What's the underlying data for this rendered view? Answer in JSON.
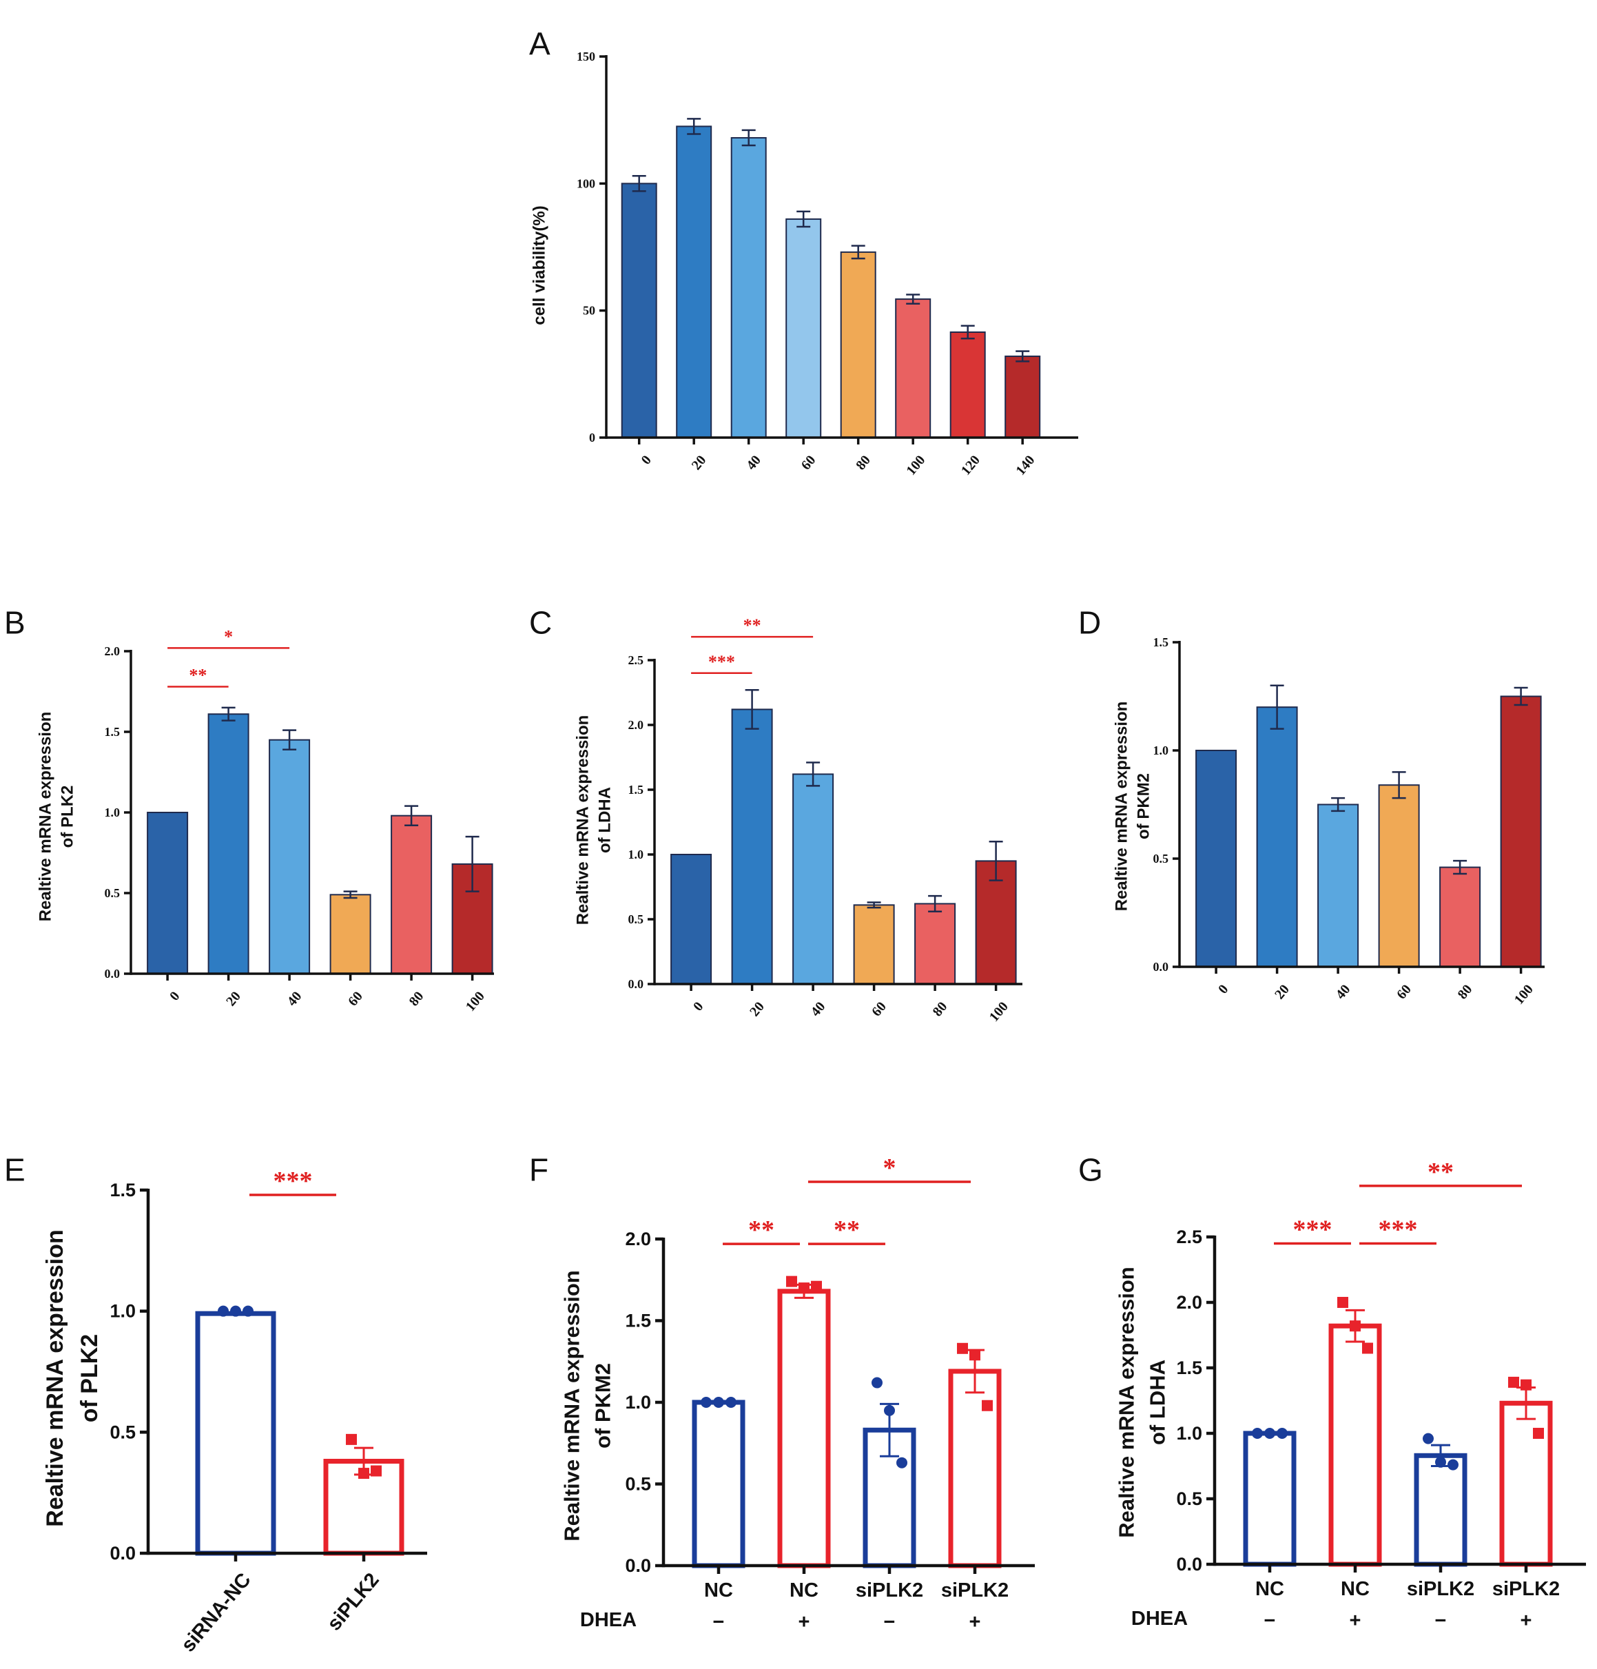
{
  "chart_data": [
    {
      "id": "A",
      "label": "A",
      "type": "bar",
      "ylabel": "cell viability(%)",
      "xlabel": "",
      "ylim": [
        0,
        150
      ],
      "yticks": [
        0,
        50,
        100,
        150
      ],
      "ytick_labels": [
        "0",
        "50",
        "100",
        "150"
      ],
      "categories": [
        "0",
        "20",
        "40",
        "60",
        "80",
        "100",
        "120",
        "140"
      ],
      "values": [
        100,
        122.5,
        118,
        86,
        73,
        54.5,
        41.5,
        32
      ],
      "errors": [
        3,
        3,
        3,
        3,
        2.5,
        1.8,
        2.5,
        2
      ],
      "colors": [
        "#2a63a8",
        "#2e7cc3",
        "#5aa7df",
        "#93c6ec",
        "#f0a955",
        "#e96161",
        "#d93535",
        "#b52a2a"
      ],
      "significance": []
    },
    {
      "id": "B",
      "label": "B",
      "type": "bar",
      "ylabel": [
        "Realtive mRNA expression",
        "of PLK2"
      ],
      "xlabel": "",
      "ylim": [
        0,
        2.0
      ],
      "yticks": [
        0,
        0.5,
        1.0,
        1.5,
        2.0
      ],
      "ytick_labels": [
        "0.0",
        "0.5",
        "1.0",
        "1.5",
        "2.0"
      ],
      "categories": [
        "0",
        "20",
        "40",
        "60",
        "80",
        "100"
      ],
      "values": [
        1.0,
        1.61,
        1.45,
        0.49,
        0.98,
        0.68
      ],
      "errors": [
        0,
        0.04,
        0.06,
        0.02,
        0.06,
        0.17
      ],
      "colors": [
        "#2a63a8",
        "#2e7cc3",
        "#5aa7df",
        "#f0a955",
        "#e96161",
        "#b52a2a"
      ],
      "significance": [
        {
          "from": 0,
          "to": 1,
          "level": 1.78,
          "label": "**"
        },
        {
          "from": 0,
          "to": 2,
          "level": 2.02,
          "label": "*"
        }
      ]
    },
    {
      "id": "C",
      "label": "C",
      "type": "bar",
      "ylabel": [
        "Realtive mRNA expression",
        "of LDHA"
      ],
      "xlabel": "",
      "ylim": [
        0,
        2.5
      ],
      "yticks": [
        0,
        0.5,
        1.0,
        1.5,
        2.0,
        2.5
      ],
      "ytick_labels": [
        "0.0",
        "0.5",
        "1.0",
        "1.5",
        "2.0",
        "2.5"
      ],
      "categories": [
        "0",
        "20",
        "40",
        "60",
        "80",
        "100"
      ],
      "values": [
        1.0,
        2.12,
        1.62,
        0.61,
        0.62,
        0.95
      ],
      "errors": [
        0,
        0.15,
        0.09,
        0.02,
        0.06,
        0.15
      ],
      "colors": [
        "#2a63a8",
        "#2e7cc3",
        "#5aa7df",
        "#f0a955",
        "#e96161",
        "#b52a2a"
      ],
      "significance": [
        {
          "from": 0,
          "to": 1,
          "level": 2.4,
          "label": "***"
        },
        {
          "from": 0,
          "to": 2,
          "level": 2.68,
          "label": "**"
        }
      ]
    },
    {
      "id": "D",
      "label": "D",
      "type": "bar",
      "ylabel": [
        "Realtive mRNA expression",
        "of PKM2"
      ],
      "xlabel": "",
      "ylim": [
        0,
        1.5
      ],
      "yticks": [
        0,
        0.5,
        1.0,
        1.5
      ],
      "ytick_labels": [
        "0.0",
        "0.5",
        "1.0",
        "1.5"
      ],
      "categories": [
        "0",
        "20",
        "40",
        "60",
        "80",
        "100"
      ],
      "values": [
        1.0,
        1.2,
        0.75,
        0.84,
        0.46,
        1.25
      ],
      "errors": [
        0,
        0.1,
        0.03,
        0.06,
        0.03,
        0.04
      ],
      "colors": [
        "#2a63a8",
        "#2e7cc3",
        "#5aa7df",
        "#f0a955",
        "#e96161",
        "#b52a2a"
      ],
      "significance": []
    },
    {
      "id": "E",
      "label": "E",
      "type": "bar",
      "ylabel": [
        "Realtive mRNA expression",
        "of PLK2"
      ],
      "xlabel": "",
      "ylim": [
        0,
        1.5
      ],
      "yticks": [
        0,
        0.5,
        1.0,
        1.5
      ],
      "ytick_labels": [
        "0.0",
        "0.5",
        "1.0",
        "1.5"
      ],
      "categories": [
        "siRNA-NC",
        "siPLK2"
      ],
      "values": [
        0.99,
        0.38
      ],
      "errors": [
        0,
        0.055
      ],
      "colors": [
        "#1a3d9a",
        "#e8232b"
      ],
      "points": [
        [
          1.0,
          1.0,
          1.0
        ],
        [
          0.47,
          0.33,
          0.34
        ]
      ],
      "markers": [
        "circle",
        "square"
      ],
      "significance": [
        {
          "from": 0,
          "to": 1,
          "level": 1.48,
          "label": "***"
        }
      ]
    },
    {
      "id": "F",
      "label": "F",
      "type": "bar",
      "ylabel": [
        "Realtive mRNA expression",
        "of PKM2"
      ],
      "xlabel": "",
      "ylim": [
        0,
        2.0
      ],
      "yticks": [
        0,
        0.5,
        1.0,
        1.5,
        2.0
      ],
      "ytick_labels": [
        "0.0",
        "0.5",
        "1.0",
        "1.5",
        "2.0"
      ],
      "categories": [
        "NC",
        "NC",
        "siPLK2",
        "siPLK2"
      ],
      "dhea_label": "DHEA",
      "dhea": [
        "−",
        "+",
        "−",
        "+"
      ],
      "values": [
        1.0,
        1.68,
        0.83,
        1.19
      ],
      "errors": [
        0,
        0.04,
        0.16,
        0.13
      ],
      "colors": [
        "#1a3d9a",
        "#e8232b",
        "#1a3d9a",
        "#e8232b"
      ],
      "points": [
        [
          1.0,
          1.0,
          1.0
        ],
        [
          1.74,
          1.7,
          1.71
        ],
        [
          1.12,
          0.95,
          0.63
        ],
        [
          1.33,
          1.29,
          0.98
        ]
      ],
      "markers": [
        "circle",
        "square",
        "circle",
        "square"
      ],
      "significance": [
        {
          "from": 0,
          "to": 1,
          "level": 1.97,
          "label": "**"
        },
        {
          "from": 1,
          "to": 2,
          "level": 1.97,
          "label": "**"
        },
        {
          "from": 1,
          "to": 3,
          "level": 2.35,
          "label": "*"
        }
      ]
    },
    {
      "id": "G",
      "label": "G",
      "type": "bar",
      "ylabel": [
        "Realtive mRNA expression",
        "of LDHA"
      ],
      "xlabel": "",
      "ylim": [
        0,
        2.5
      ],
      "yticks": [
        0,
        0.5,
        1.0,
        1.5,
        2.0,
        2.5
      ],
      "ytick_labels": [
        "0.0",
        "0.5",
        "1.0",
        "1.5",
        "2.0",
        "2.5"
      ],
      "categories": [
        "NC",
        "NC",
        "siPLK2",
        "siPLK2"
      ],
      "dhea_label": "DHEA",
      "dhea": [
        "−",
        "+",
        "−",
        "+"
      ],
      "values": [
        1.0,
        1.82,
        0.83,
        1.23
      ],
      "errors": [
        0,
        0.12,
        0.08,
        0.12
      ],
      "colors": [
        "#1a3d9a",
        "#e8232b",
        "#1a3d9a",
        "#e8232b"
      ],
      "points": [
        [
          1.0,
          1.0,
          1.0
        ],
        [
          2.0,
          1.82,
          1.65
        ],
        [
          0.96,
          0.78,
          0.76
        ],
        [
          1.39,
          1.37,
          1.0
        ]
      ],
      "markers": [
        "circle",
        "square",
        "circle",
        "square"
      ],
      "significance": [
        {
          "from": 0,
          "to": 1,
          "level": 2.45,
          "label": "***"
        },
        {
          "from": 1,
          "to": 2,
          "level": 2.45,
          "label": "***"
        },
        {
          "from": 1,
          "to": 3,
          "level": 2.89,
          "label": "**"
        }
      ]
    }
  ]
}
